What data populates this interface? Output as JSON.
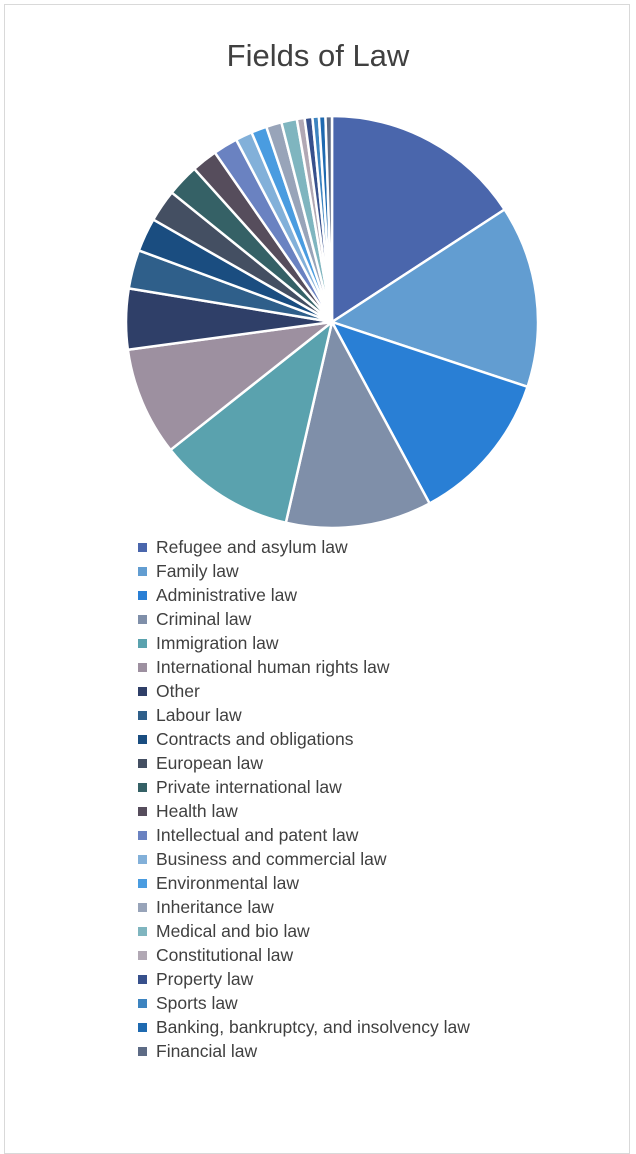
{
  "chart_data": {
    "type": "pie",
    "title": "Fields of Law",
    "legend_position": "bottom",
    "categories": [
      "Refugee and asylum law",
      "Family law",
      "Administrative law",
      "Criminal law",
      "Immigration law",
      "International human rights law",
      "Other",
      "Labour law",
      "Contracts and obligations",
      "European law",
      "Private international law",
      "Health law",
      "Intellectual and patent law",
      "Business and commercial law",
      "Environmental law",
      "Inheritance law",
      "Medical and bio law",
      "Constitutional law",
      "Property law",
      "Sports law",
      "Banking, bankruptcy, and insolvency law",
      "Financial law"
    ],
    "values": [
      15.6,
      14.1,
      11.9,
      11.3,
      10.6,
      8.4,
      4.7,
      3.0,
      2.6,
      2.5,
      2.5,
      2.0,
      1.9,
      1.3,
      1.2,
      1.2,
      1.2,
      0.6,
      0.6,
      0.5,
      0.5,
      0.5
    ],
    "colors": [
      "#4a66ac",
      "#629dd1",
      "#297fd5",
      "#7f8fa9",
      "#5aa2ae",
      "#9d90a0",
      "#2f3f68",
      "#2f5f8a",
      "#1a4d80",
      "#444f62",
      "#356166",
      "#564d5c",
      "#6a82c1",
      "#82b0d9",
      "#4a9ce0",
      "#98a4b9",
      "#7fb5bf",
      "#b1a8b4",
      "#37508c",
      "#3d84c0",
      "#1f6ab0",
      "#5d6b85"
    ]
  }
}
